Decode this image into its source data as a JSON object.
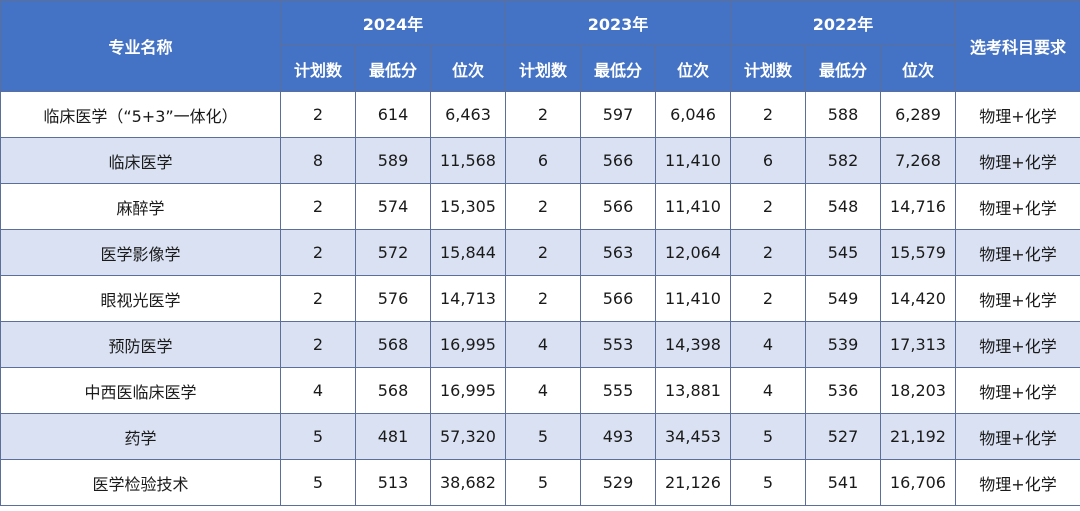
{
  "header": {
    "major_label": "专业名称",
    "subject_label": "选考科目要求",
    "years": [
      "2024年",
      "2023年",
      "2022年"
    ],
    "sub_labels": [
      "计划数",
      "最低分",
      "位次"
    ]
  },
  "rows": [
    {
      "major": "临床医学（“5+3”一体化）",
      "y2024": [
        "2",
        "614",
        "6,463"
      ],
      "y2023": [
        "2",
        "597",
        "6,046"
      ],
      "y2022": [
        "2",
        "588",
        "6,289"
      ],
      "subject": "物理+化学"
    },
    {
      "major": "临床医学",
      "y2024": [
        "8",
        "589",
        "11,568"
      ],
      "y2023": [
        "6",
        "566",
        "11,410"
      ],
      "y2022": [
        "6",
        "582",
        "7,268"
      ],
      "subject": "物理+化学"
    },
    {
      "major": "麻醉学",
      "y2024": [
        "2",
        "574",
        "15,305"
      ],
      "y2023": [
        "2",
        "566",
        "11,410"
      ],
      "y2022": [
        "2",
        "548",
        "14,716"
      ],
      "subject": "物理+化学"
    },
    {
      "major": "医学影像学",
      "y2024": [
        "2",
        "572",
        "15,844"
      ],
      "y2023": [
        "2",
        "563",
        "12,064"
      ],
      "y2022": [
        "2",
        "545",
        "15,579"
      ],
      "subject": "物理+化学"
    },
    {
      "major": "眼视光医学",
      "y2024": [
        "2",
        "576",
        "14,713"
      ],
      "y2023": [
        "2",
        "566",
        "11,410"
      ],
      "y2022": [
        "2",
        "549",
        "14,420"
      ],
      "subject": "物理+化学"
    },
    {
      "major": "预防医学",
      "y2024": [
        "2",
        "568",
        "16,995"
      ],
      "y2023": [
        "4",
        "553",
        "14,398"
      ],
      "y2022": [
        "4",
        "539",
        "17,313"
      ],
      "subject": "物理+化学"
    },
    {
      "major": "中西医临床医学",
      "y2024": [
        "4",
        "568",
        "16,995"
      ],
      "y2023": [
        "4",
        "555",
        "13,881"
      ],
      "y2022": [
        "4",
        "536",
        "18,203"
      ],
      "subject": "物理+化学"
    },
    {
      "major": "药学",
      "y2024": [
        "5",
        "481",
        "57,320"
      ],
      "y2023": [
        "5",
        "493",
        "34,453"
      ],
      "y2022": [
        "5",
        "527",
        "21,192"
      ],
      "subject": "物理+化学"
    },
    {
      "major": "医学检验技术",
      "y2024": [
        "5",
        "513",
        "38,682"
      ],
      "y2023": [
        "5",
        "529",
        "21,126"
      ],
      "y2022": [
        "5",
        "541",
        "16,706"
      ],
      "subject": "物理+化学"
    }
  ]
}
